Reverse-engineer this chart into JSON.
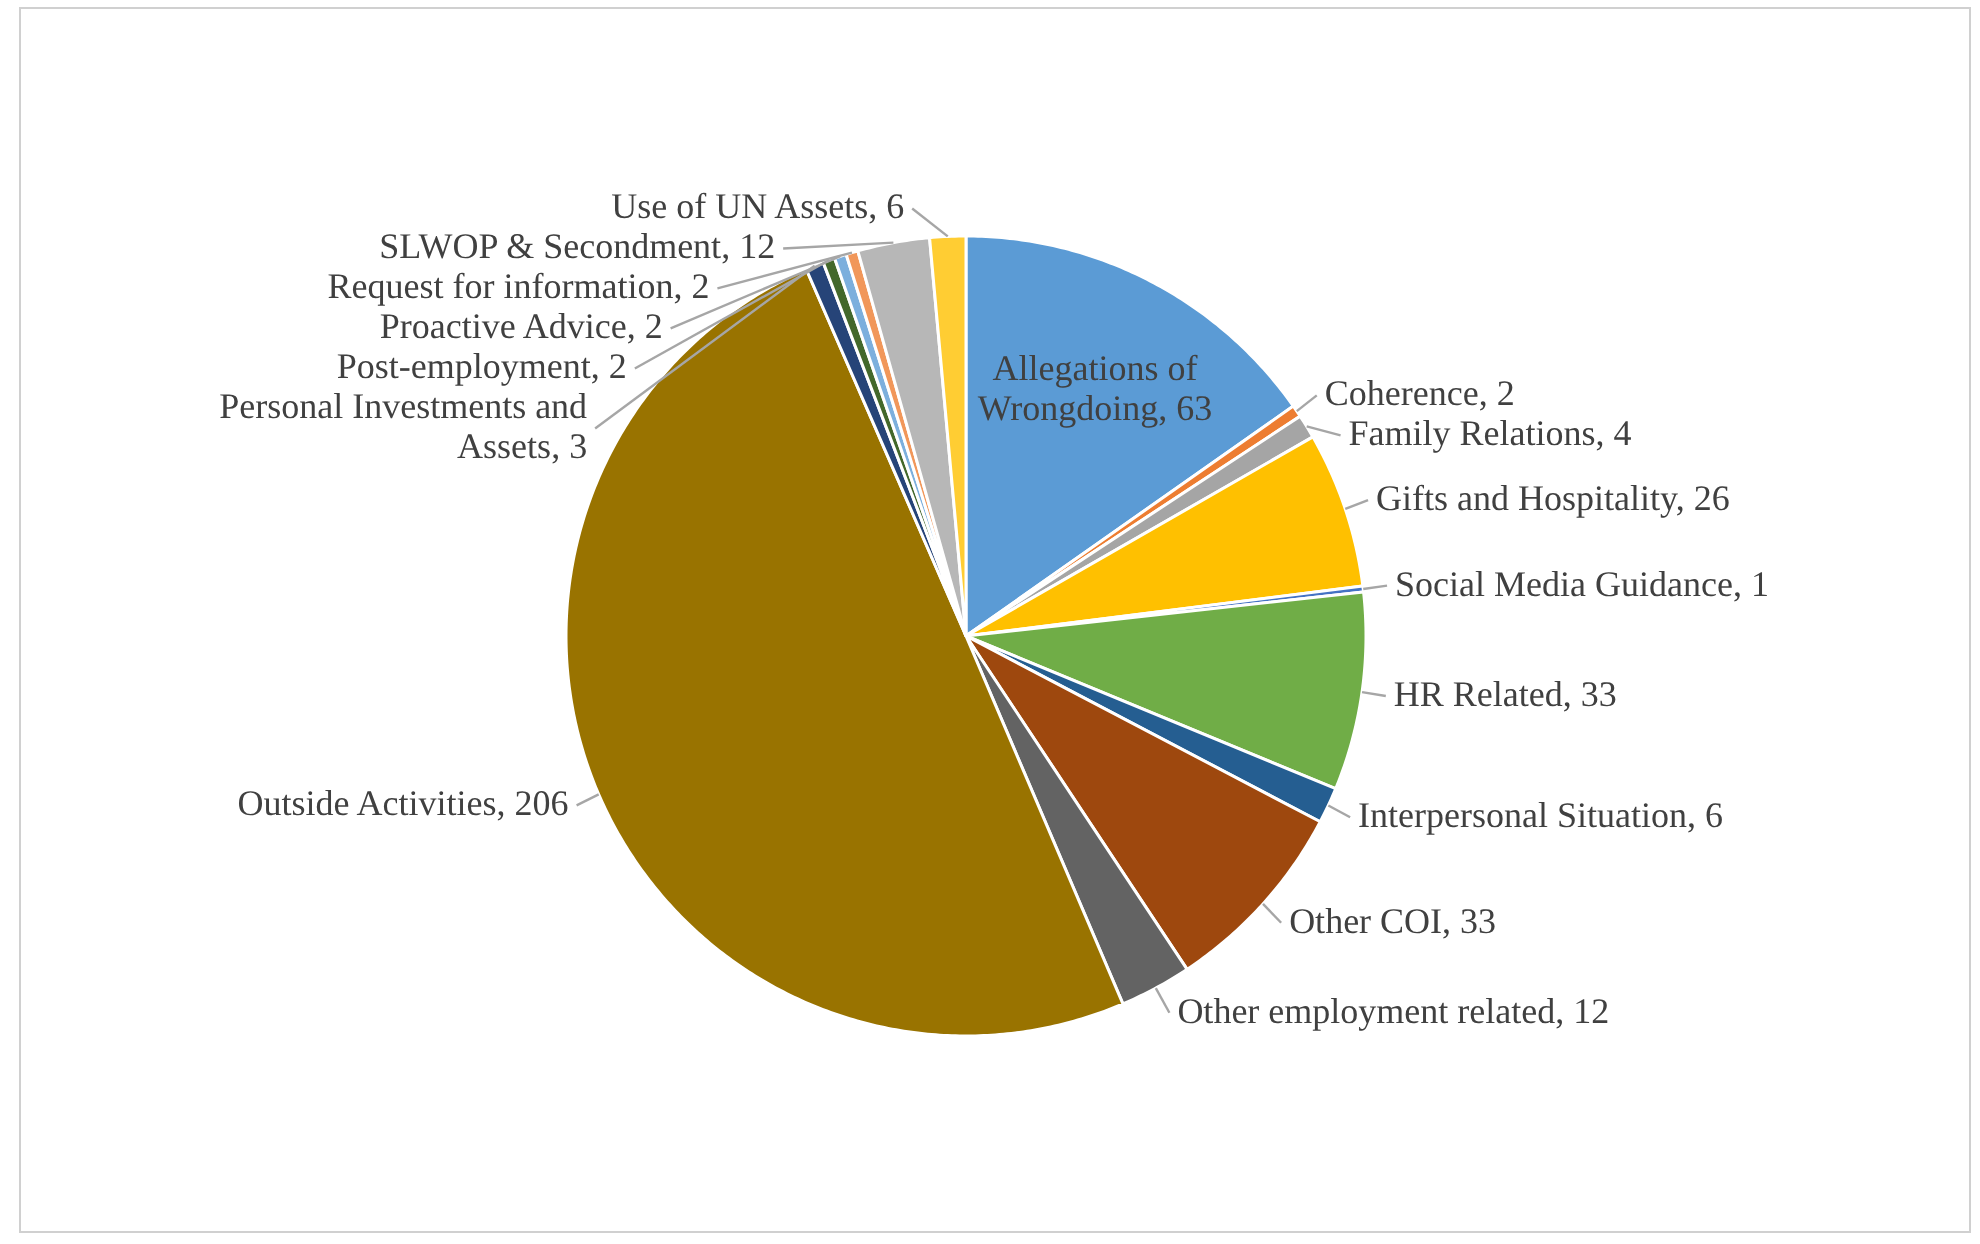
{
  "chart_data": {
    "type": "pie",
    "value_labels": [
      ", 63",
      ", 2",
      ", 4",
      ", 26",
      ", 1",
      ", 33",
      ", 6",
      ", 33",
      ", 12",
      ", 206",
      ", 3",
      ", 2",
      ", 2",
      ", 2",
      ", 12",
      ", 6"
    ],
    "categories": [
      "Allegations of Wrongdoing",
      "Coherence",
      "Family Relations",
      "Gifts and Hospitality",
      "Social Media Guidance",
      "HR Related",
      "Interpersonal Situation",
      "Other COI",
      "Other employment related",
      "Outside Activities",
      "Personal Investments and Assets",
      "Post-employment",
      "Proactive Advice",
      "Request for information",
      "SLWOP & Secondment",
      "Use of UN Assets"
    ],
    "values": [
      63,
      2,
      4,
      26,
      1,
      33,
      6,
      33,
      12,
      206,
      3,
      2,
      2,
      2,
      12,
      6
    ],
    "colors": [
      "#5b9bd5",
      "#ed7d31",
      "#a5a5a5",
      "#ffc000",
      "#4472c4",
      "#70ad47",
      "#255e91",
      "#9e480e",
      "#636363",
      "#997300",
      "#264478",
      "#43682b",
      "#7cafdd",
      "#f1975a",
      "#b7b7b7",
      "#ffcd33"
    ]
  }
}
